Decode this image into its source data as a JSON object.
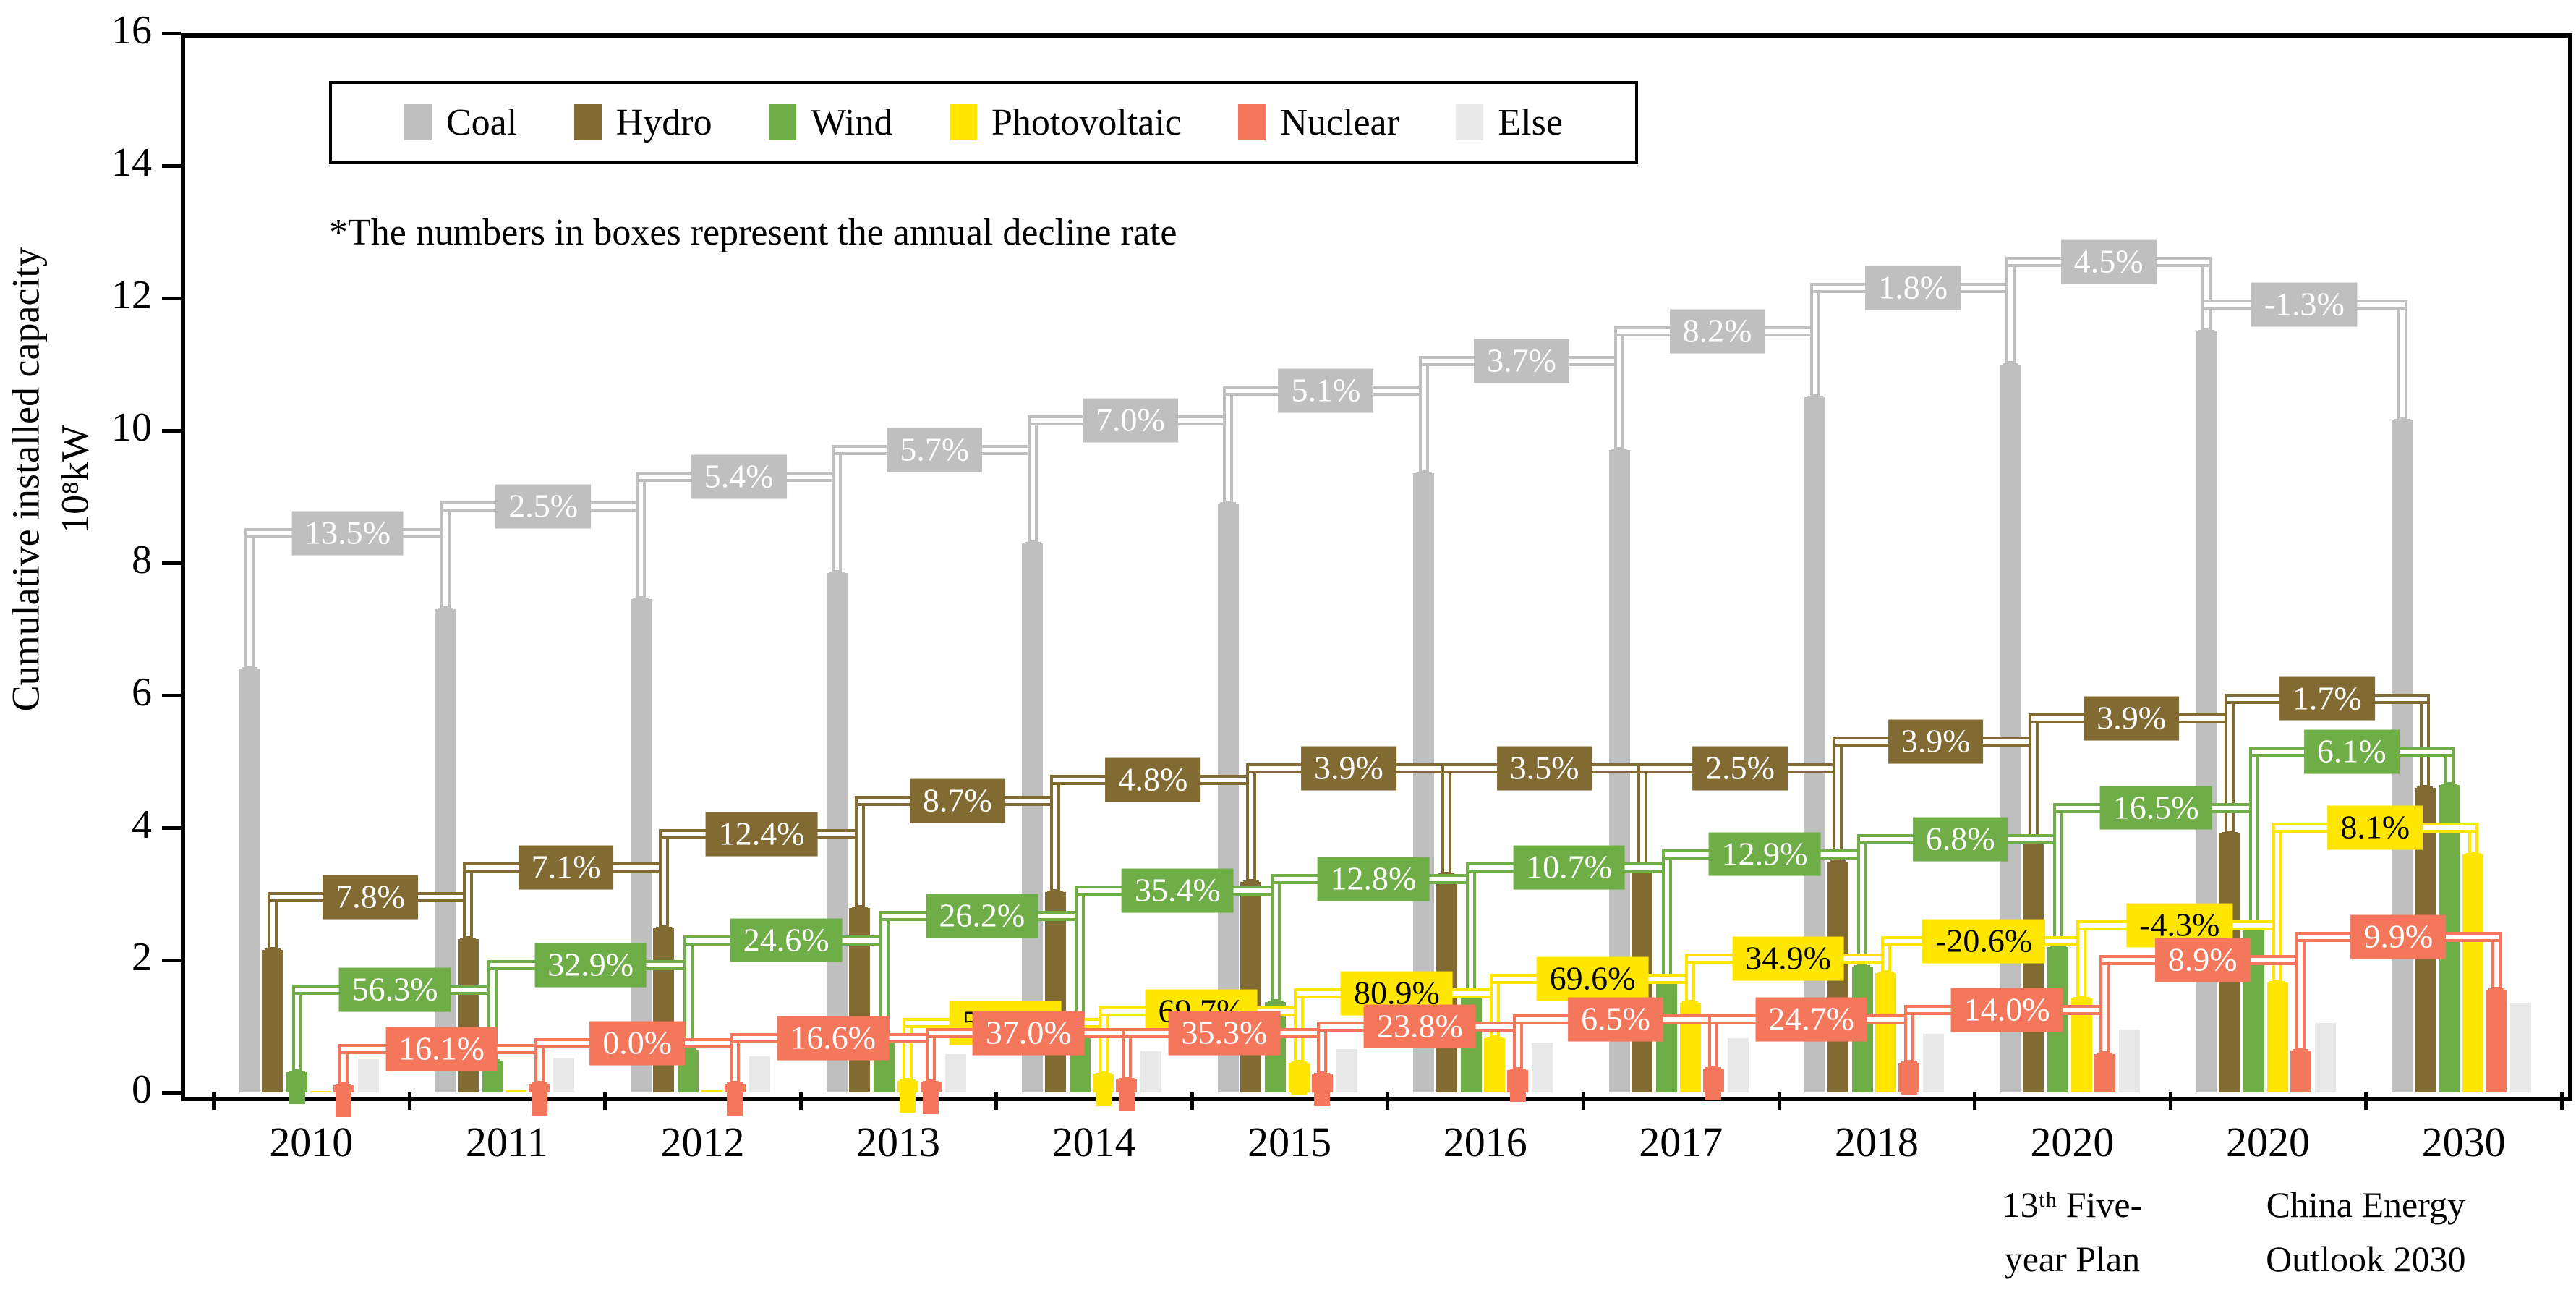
{
  "figure": {
    "note": "*The numbers in boxes represent the annual decline rate",
    "y_axis": {
      "title_line1": "Cumulative installed capacity",
      "title_line2": "10⁸kW",
      "min": 0,
      "max": 16,
      "tick_step": 2,
      "tick_labels": [
        "0",
        "2",
        "4",
        "6",
        "8",
        "10",
        "12",
        "14",
        "16"
      ]
    }
  },
  "legend": {
    "items": [
      {
        "label": "Coal",
        "color": "#BFBFBF"
      },
      {
        "label": "Hydro",
        "color": "#826A33"
      },
      {
        "label": "Wind",
        "color": "#6FAD47"
      },
      {
        "label": "Photovoltaic",
        "color": "#FFE600"
      },
      {
        "label": "Nuclear",
        "color": "#F4775C"
      },
      {
        "label": "Else",
        "color": "#E8E8E8"
      }
    ]
  },
  "chart_data": {
    "type": "bar",
    "title": "",
    "xlabel": "",
    "ylabel": "Cumulative installed capacity (10⁸kW)",
    "ylim": [
      0,
      16
    ],
    "grid": false,
    "legend_position": "top",
    "annotation_meaning": "boxes between consecutive bars show the annual decline rate of each source",
    "categories": [
      "2010",
      "2011",
      "2012",
      "2013",
      "2014",
      "2015",
      "2016",
      "2017",
      "2018",
      "2020",
      "2020",
      "2030"
    ],
    "category_footnotes": [
      {
        "category_index": 9,
        "lines": [
          "13ᵗʰ Five-",
          "year Plan"
        ]
      },
      {
        "category_index": 10,
        "span": 2,
        "lines": [
          "China Energy",
          "Outlook 2030"
        ]
      }
    ],
    "series": [
      {
        "name": "Coal",
        "color": "#BFBFBF",
        "label_text_color": "#FFFFFF",
        "values": [
          6.4,
          7.3,
          7.45,
          7.85,
          8.3,
          8.9,
          9.35,
          9.7,
          10.5,
          11.0,
          11.5,
          10.15
        ],
        "decline_rates": [
          "13.5%",
          "2.5%",
          "5.4%",
          "5.7%",
          "7.0%",
          "5.1%",
          "3.7%",
          "8.2%",
          "1.8%",
          "4.5%",
          "-1.3%"
        ],
        "bracket_levels": [
          8.45,
          8.85,
          9.3,
          9.7,
          10.15,
          10.6,
          11.05,
          11.5,
          12.15,
          12.55,
          11.9
        ]
      },
      {
        "name": "Hydro",
        "color": "#826A33",
        "label_text_color": "#FFFFFF",
        "values": [
          2.15,
          2.32,
          2.48,
          2.79,
          3.03,
          3.18,
          3.29,
          3.4,
          3.49,
          3.76,
          3.91,
          4.6
        ],
        "decline_rates": [
          "7.8%",
          "7.1%",
          "12.4%",
          "8.7%",
          "4.8%",
          "3.9%",
          "3.5%",
          "2.5%",
          "3.9%",
          "3.9%",
          "1.7%"
        ],
        "bracket_levels": [
          2.95,
          3.4,
          3.9,
          4.4,
          4.72,
          4.9,
          4.9,
          4.9,
          5.3,
          5.65,
          5.95
        ]
      },
      {
        "name": "Wind",
        "color": "#6FAD47",
        "label_text_color": "#FFFFFF",
        "values": [
          0.31,
          0.48,
          0.64,
          0.8,
          1.01,
          1.37,
          1.52,
          1.72,
          1.9,
          2.2,
          2.56,
          4.65
        ],
        "decline_rates": [
          "56.3%",
          "32.9%",
          "24.6%",
          "26.2%",
          "35.4%",
          "12.8%",
          "10.7%",
          "12.9%",
          "6.8%",
          "16.5%",
          "6.1%"
        ],
        "bracket_levels": [
          1.55,
          1.92,
          2.3,
          2.67,
          3.05,
          3.22,
          3.4,
          3.6,
          3.82,
          4.3,
          5.15
        ]
      },
      {
        "name": "Photovoltaic",
        "color": "#FFE600",
        "label_text_color": "#000000",
        "values": [
          0.02,
          0.03,
          0.04,
          0.17,
          0.27,
          0.45,
          0.82,
          1.36,
          1.8,
          1.42,
          1.66,
          3.6
        ],
        "decline_rates": [
          null,
          null,
          null,
          "56.5%",
          "69.7%",
          "80.9%",
          "69.6%",
          "34.9%",
          "-20.6%",
          "-4.3%",
          "8.1%"
        ],
        "bracket_levels": [
          null,
          null,
          null,
          1.05,
          1.22,
          1.5,
          1.72,
          2.02,
          2.28,
          2.52,
          4.0
        ]
      },
      {
        "name": "Nuclear",
        "color": "#F4775C",
        "label_text_color": "#FFFFFF",
        "values": [
          0.11,
          0.13,
          0.13,
          0.15,
          0.2,
          0.27,
          0.34,
          0.36,
          0.45,
          0.58,
          0.63,
          1.55
        ],
        "decline_rates": [
          "16.1%",
          "0.0%",
          "16.6%",
          "37.0%",
          "35.3%",
          "23.8%",
          "6.5%",
          "24.7%",
          "14.0%",
          "8.9%",
          "9.9%"
        ],
        "bracket_levels": [
          0.66,
          0.74,
          0.82,
          0.9,
          0.9,
          1.0,
          1.1,
          1.1,
          1.25,
          2.0,
          2.35
        ]
      },
      {
        "name": "Else",
        "color": "#E8E8E8",
        "label_text_color": "#000000",
        "values": [
          0.5,
          0.52,
          0.55,
          0.58,
          0.62,
          0.66,
          0.75,
          0.82,
          0.88,
          0.95,
          1.05,
          1.35
        ],
        "decline_rates": [
          null,
          null,
          null,
          null,
          null,
          null,
          null,
          null,
          null,
          null,
          null
        ],
        "bracket_levels": [
          null,
          null,
          null,
          null,
          null,
          null,
          null,
          null,
          null,
          null,
          null
        ]
      }
    ]
  }
}
